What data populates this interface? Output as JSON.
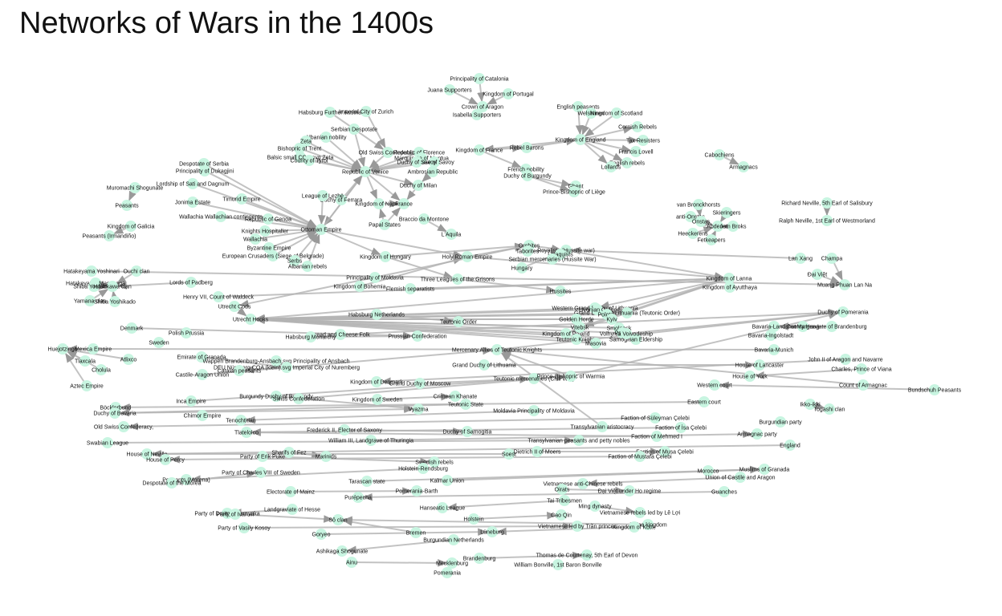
{
  "title": "Networks of Wars in the 1400s",
  "style": {
    "node_color": "#c8f5e1",
    "edge_color": "#b3b3b3",
    "arrow_color": "#999999",
    "text_color": "#111111"
  },
  "nodes": [
    "Principality of Catalonia",
    "Juana Supporters",
    "Kingdom of Portugal",
    "Crown of Aragon",
    "Isabella Supporters",
    "English peasants",
    "Welshmen",
    "Kingdom of Scotland",
    "Cornish Rebels",
    "Kingdom of England",
    "Tax Resisters",
    "Francis Lovell",
    "English rebels",
    "Lollards",
    "Kingdom of France",
    "Rebel Barons",
    "French nobility",
    "Duchy of Burgundy",
    "Ghent",
    "Prince-Bishopric of Liège",
    "Cabochiens",
    "Armagnacs",
    "Habsburg Further Austria",
    "Imperial City of Zurich",
    "Serbian Despotate",
    "Albanian nobility",
    "Zeta",
    "Bishopric of Trent",
    "Balsic small COA.svg Zeta",
    "County of Tyrol",
    "Old Swiss Confederacy",
    "Republic of Florence",
    "Marquisate of Mantua",
    "House of Savoy",
    "Duchy of Savoy",
    "Republic of Venice",
    "Ambrosian Republic",
    "Duchy of Milan",
    "Kingdom of Naples",
    "France",
    "Duchy of Ferrara",
    "League of Lezhë",
    "Papal States",
    "Braccio da Montone",
    "L'Aquila",
    "Despotate of Serbia",
    "Principality of Dukagjini",
    "Lordship of Sati and Dagnum",
    "Muromachi Shogunate",
    "Timurid Empire",
    "Jonima Estate",
    "Peasants",
    "Republic of Genoa",
    "Wallachia Wallachian contingents",
    "Kingdom of Galicia",
    "Ottoman Empire",
    "Knights Hospitaller",
    "Wallachia",
    "Peasants (Irmandiño)",
    "Byzantine Empire",
    "European Crusaders (Siege of Belgrade)",
    "Serbs",
    "Albanian rebels",
    "van Bronckhorsts",
    "Richard Neville, 5th Earl of Salisbury",
    "anti-Onstas",
    "Skieringers",
    "Onstas",
    "Abdenas",
    "Jem Broks",
    "Ralph Neville, 1st Earl of Westmorland",
    "Heeckerens",
    "Fetkeapers",
    "Kingdom of Hungary",
    "Holy Roman Empire",
    "Orebites",
    "Taborites",
    "Royalists (Hussite war)",
    "Utraquists",
    "Serbian mercenaries (Hussite War)",
    "Hungary",
    "Lan Xang",
    "Champa",
    "Đại Việt",
    "Muang Phuan Lan Na",
    "Hatakeyama Yoshinari",
    "Ouchi clan",
    "Hatakeyama Masanaga",
    "Shiba Yoshitoshi",
    "Hosokawa clan",
    "Yamana clan",
    "Shiba Yoshikado",
    "Lords of Padberg",
    "Principality of Moldavia",
    "Three Leagues of the Grisons",
    "Kingdom of Bohemia",
    "Flemish separatists",
    "Hussites",
    "Kingdom of Lanna",
    "Kingdom of Ayutthaya",
    "Henry VII, Count of Waldeck",
    "Utrecht Cods",
    "Utrecht Hooks",
    "Western Grand Duchy of Lithuania",
    "Grand Duchy of Lithuania (Teutonic Order)",
    "Livonian Order",
    "Polotsk",
    "Golden Horde",
    "Kyiv",
    "Kingdom of Poland",
    "Vitebsk",
    "Smolensk",
    "Teutonic Knights",
    "Pskov",
    "Samogitian Eldership",
    "Masovia",
    "Volhynia Voivodeship",
    "Duchy of Pomerania",
    "Habsburg Netherlands",
    "Teutonic Order",
    "Bread and Cheese Folk",
    "Habsburg Monarchy",
    "Prussian Confederation",
    "Denmark",
    "Polish Prussia",
    "Sweden",
    "County Haag",
    "Bavaria-Landshut",
    "Margraviate of Brandenburg",
    "Bavaria-Ingolstadt",
    "Bavaria-Munich",
    "Huejotzingo",
    "Mexica Empire",
    "Atlixco",
    "Tlaxcala",
    "Cholula",
    "Aztec Empire",
    "Emirate of Granada",
    "Wappen Brandenburg-Ansbach.svg Principality of Ansbach",
    "DEU Nürnberg COA (klein).svg Imperial City of Nuremberg",
    "Catalan peasants",
    "Castile-Aragon Union",
    "Mercenary Allies of Teutonic Knights",
    "Grand Duchy of Lithuania",
    "John II of Aragon and Navarre",
    "House of Lancaster",
    "Charles, Prince of Viana",
    "House of York",
    "Kingdom of Denmark",
    "Grand Duchy of Moscow",
    "Teutonic mercenaries (Civil War)",
    "Prince-Bishopric of Warmia",
    "Count of Armagnac",
    "Bundschuh Peasants",
    "Western court",
    "Kingdom of Sweden",
    "Crimean Khanate",
    "Burgundy Duchy of Burgundy",
    "Swiss Confederation",
    "Inca Empire",
    "Eastern court",
    "Böcklerbund",
    "Duchy of Bavaria",
    "Vyazma",
    "Teutonic State",
    "Ikko-ikki",
    "Togashi clan",
    "Moldavia Principality of Moldavia",
    "Chimor Empire",
    "Tenochtitlan",
    "Faction of Süleyman Çelebi",
    "Old Swiss Confederacy,",
    "Transylvanian aristocracy",
    "Faction of İsa Çelebi",
    "Burgundian party",
    "Tlatelolco",
    "Frederick II, Elector of Saxony",
    "Duchy of Samogitia",
    "Faction of Mehmed I",
    "William III, Landgrave of Thuringia",
    "Armagnac party",
    "Swabian League",
    "Transylvanian peasants and petty nobles",
    "England",
    "House of Neville",
    "Sharifs of Fez",
    "Marinids",
    "Soest",
    "Dietrich II of Moers",
    "Faction of Musa Çelebi",
    "Faction of Mustafa Çelebi",
    "House of Percy",
    "Party of Erik Puke",
    "Swedish rebels",
    "Holstein-Rendsburg",
    "Peasants (Morena)",
    "Despotate of the Morea",
    "Party of Charles VIII of Sweden",
    "Kalmar Union",
    "Tarascan state",
    "Morocco",
    "Muslims of Granada",
    "Union of Castile and Aragon",
    "Vietnamese anti-Chinese rebels",
    "Oirats",
    "Đại Việt under Ho regime",
    "Electorate of Mainz",
    "Pomerania-Barth",
    "Guanches",
    "Purépecha",
    "Tai Tribesmen",
    "Hanseatic League",
    "Ming dynasty",
    "Vietnamese rebels led by Lê Lợi",
    "Landgraviate of Hesse",
    "Party of Dmitry Shemyaka",
    "Party of Ivan III",
    "Sō clan",
    "Holstein",
    "Cao Qin",
    "Jaffna kingdom",
    "Party of Vasily Kosoy",
    "Vietnamese led by Trần princes",
    "Kingdom of Kotte",
    "Lüneburg",
    "Goryeo",
    "Bremen",
    "Burgundian Netherlands",
    "Ashikaga Shogunate",
    "Brandenburg",
    "Thomas de Courtenay, 5th Earl of Devon",
    "Ainu",
    "Mecklenburg",
    "William Bonville, 1st Baron Bonville",
    "Pomerania"
  ]
}
